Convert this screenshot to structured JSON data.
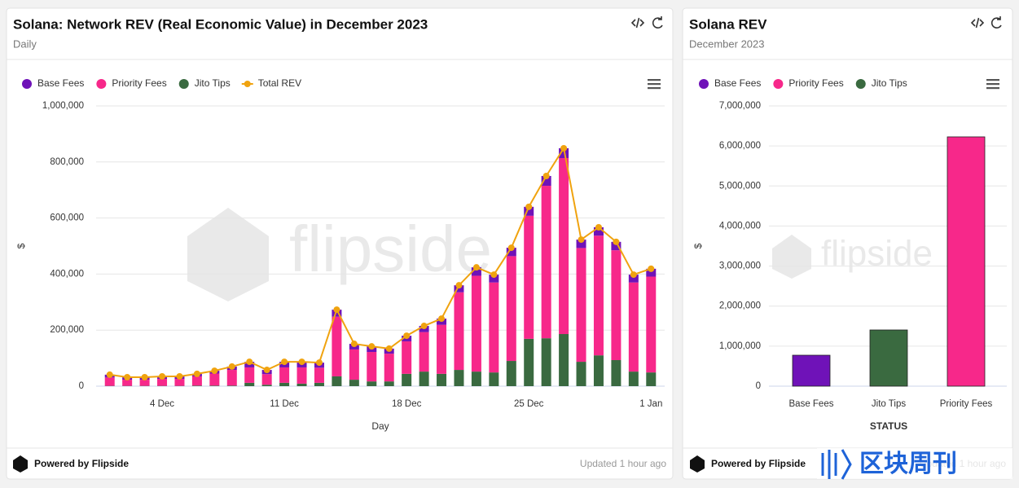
{
  "footer": {
    "powered": "Powered by Flipside",
    "updated": "Updated 1 hour ago"
  },
  "watermark": "flipside",
  "overlay": "区块周刊",
  "chart_data": [
    {
      "type": "bar",
      "stacked": true,
      "title": "Solana: Network REV (Real Economic Value) in December 2023",
      "subtitle": "Daily",
      "xlabel": "Day",
      "ylabel": "$",
      "categories": [
        null,
        null,
        null,
        "4 Dec",
        null,
        null,
        null,
        null,
        null,
        null,
        "11 Dec",
        null,
        null,
        null,
        null,
        null,
        null,
        "18 Dec",
        null,
        null,
        null,
        null,
        null,
        null,
        "25 Dec",
        null,
        null,
        null,
        null,
        null,
        null,
        "1 Jan"
      ],
      "series": [
        {
          "name": "Base Fees",
          "color": "#6f12b8",
          "values": [
            10000,
            9000,
            9000,
            9000,
            9000,
            9000,
            10000,
            12000,
            20000,
            15000,
            20000,
            20000,
            18000,
            25000,
            20000,
            20000,
            18000,
            20000,
            22000,
            22000,
            25000,
            30000,
            28000,
            30000,
            32000,
            35000,
            35000,
            30000,
            30000,
            30000,
            28000,
            28000
          ]
        },
        {
          "name": "Priority Fees",
          "color": "#f7288a",
          "values": [
            30000,
            22000,
            22000,
            25000,
            25000,
            33000,
            43000,
            56000,
            55000,
            38000,
            55000,
            58000,
            54000,
            213000,
            108000,
            105000,
            99000,
            116000,
            141000,
            175000,
            277000,
            342000,
            321000,
            374000,
            439000,
            544000,
            628000,
            406000,
            427000,
            392000,
            318000,
            342000
          ]
        },
        {
          "name": "Jito Tips",
          "color": "#3a6a40",
          "values": [
            1000,
            1000,
            1000,
            1000,
            1000,
            2000,
            2000,
            2000,
            12000,
            5000,
            12000,
            9000,
            12000,
            35000,
            23000,
            17000,
            17000,
            44000,
            52000,
            44000,
            58000,
            52000,
            49000,
            90000,
            169000,
            171000,
            186000,
            87000,
            110000,
            93000,
            52000,
            49000
          ]
        },
        {
          "name": "Total REV",
          "type": "line",
          "color": "#f0a30f",
          "values": [
            41000,
            32000,
            32000,
            35000,
            35000,
            44000,
            55000,
            70000,
            87000,
            58000,
            87000,
            87000,
            84000,
            273000,
            151000,
            142000,
            134000,
            180000,
            215000,
            241000,
            360000,
            424000,
            398000,
            494000,
            640000,
            750000,
            849000,
            523000,
            567000,
            515000,
            398000,
            419000
          ]
        }
      ],
      "ylim": [
        0,
        1000000
      ],
      "yticks": [
        0,
        {
          "value": 200000,
          "label": "200,000"
        },
        {
          "value": 400000,
          "label": "400,000"
        },
        {
          "value": 600000,
          "label": "600,000"
        },
        {
          "value": 800000,
          "label": "800,000"
        },
        {
          "value": 1000000,
          "label": "1,000,000"
        }
      ],
      "grid": true,
      "legend": "top"
    },
    {
      "type": "bar",
      "title": "Solana REV",
      "subtitle": "December 2023",
      "xlabel": "STATUS",
      "ylabel": "$",
      "categories": [
        "Base Fees",
        "Jito Tips",
        "Priority Fees"
      ],
      "values": [
        773000,
        1404000,
        6227000
      ],
      "colors": [
        "#6f12b8",
        "#3a6a40",
        "#f7288a"
      ],
      "legend_names": [
        "Base Fees",
        "Priority Fees",
        "Jito Tips"
      ],
      "legend_colors": [
        "#6f12b8",
        "#f7288a",
        "#3a6a40"
      ],
      "ylim": [
        0,
        7000000
      ],
      "yticks": [
        0,
        {
          "value": 1000000,
          "label": "1,000,000"
        },
        {
          "value": 2000000,
          "label": "2,000,000"
        },
        {
          "value": 3000000,
          "label": "3,000,000"
        },
        {
          "value": 4000000,
          "label": "4,000,000"
        },
        {
          "value": 5000000,
          "label": "5,000,000"
        },
        {
          "value": 6000000,
          "label": "6,000,000"
        },
        {
          "value": 7000000,
          "label": "7,000,000"
        }
      ],
      "grid": true,
      "legend": "top"
    }
  ]
}
